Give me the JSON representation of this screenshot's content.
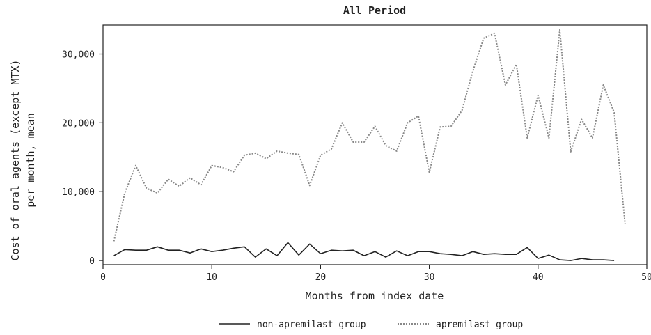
{
  "chart_data": {
    "type": "line",
    "title": "All Period",
    "xlabel": "Months from index date",
    "ylabel_lines": [
      "Cost of oral agents (except MTX)",
      "per month, mean"
    ],
    "xlim": [
      0,
      50
    ],
    "ylim": [
      -600,
      34200
    ],
    "x_ticks": [
      0,
      10,
      20,
      30,
      40,
      50
    ],
    "x_tick_labels": [
      "0",
      "10",
      "20",
      "30",
      "40",
      "50"
    ],
    "y_ticks": [
      0,
      10000,
      20000,
      30000
    ],
    "y_tick_labels": [
      "0",
      "10,000",
      "20,000",
      "30,000"
    ],
    "grid": false,
    "legend_position": "bottom-center",
    "series": [
      {
        "name": "non-apremilast group",
        "style": "solid",
        "color": "#222222",
        "x": [
          1,
          2,
          3,
          4,
          5,
          6,
          7,
          8,
          9,
          10,
          11,
          12,
          13,
          14,
          15,
          16,
          17,
          18,
          19,
          20,
          21,
          22,
          23,
          24,
          25,
          26,
          27,
          28,
          29,
          30,
          31,
          32,
          33,
          34,
          35,
          36,
          37,
          38,
          39,
          40,
          41,
          42,
          43,
          44,
          45,
          46,
          47
        ],
        "values": [
          700,
          1600,
          1500,
          1500,
          2000,
          1500,
          1500,
          1100,
          1700,
          1300,
          1500,
          1800,
          2000,
          500,
          1700,
          700,
          2600,
          800,
          2400,
          1000,
          1500,
          1400,
          1500,
          700,
          1300,
          500,
          1400,
          700,
          1300,
          1300,
          1000,
          900,
          700,
          1300,
          900,
          1000,
          900,
          900,
          1900,
          300,
          800,
          100,
          0,
          300,
          100,
          100,
          0
        ]
      },
      {
        "name": "apremilast group",
        "style": "dotted",
        "color": "#888888",
        "x": [
          1,
          2,
          3,
          4,
          5,
          6,
          7,
          8,
          9,
          10,
          11,
          12,
          13,
          14,
          15,
          16,
          17,
          18,
          19,
          20,
          21,
          22,
          23,
          24,
          25,
          26,
          27,
          28,
          29,
          30,
          31,
          32,
          33,
          34,
          35,
          36,
          37,
          38,
          39,
          40,
          41,
          42,
          43,
          44,
          45,
          46,
          47,
          48
        ],
        "values": [
          2800,
          9800,
          13800,
          10500,
          9800,
          11800,
          10800,
          12000,
          11000,
          13800,
          13500,
          12900,
          15300,
          15600,
          14800,
          15900,
          15600,
          15400,
          10900,
          15300,
          16200,
          20000,
          17200,
          17200,
          19500,
          16700,
          15900,
          20000,
          21000,
          12800,
          19400,
          19500,
          21800,
          27500,
          32300,
          33000,
          25500,
          28500,
          17800,
          24000,
          17800,
          33500,
          15800,
          20500,
          17800,
          25500,
          21500,
          5300
        ]
      }
    ]
  }
}
